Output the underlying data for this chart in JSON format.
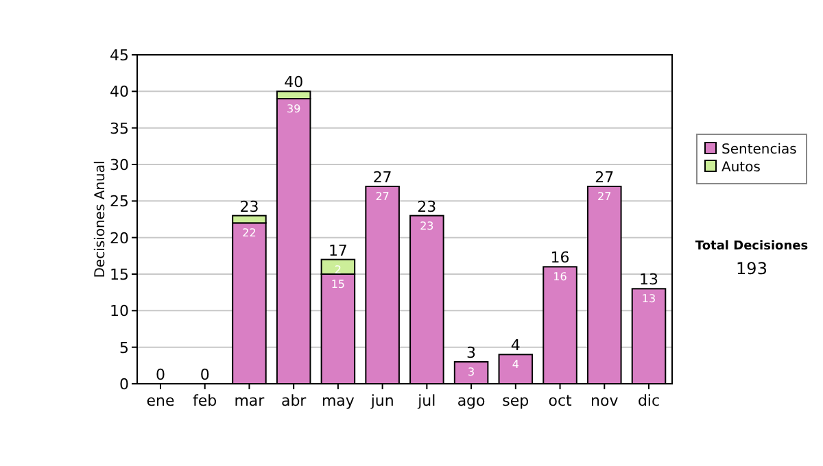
{
  "chart_data": {
    "type": "bar",
    "stacked": true,
    "ylabel": "Decisiones Anual",
    "categories": [
      "ene",
      "feb",
      "mar",
      "abr",
      "may",
      "jun",
      "jul",
      "ago",
      "sep",
      "oct",
      "nov",
      "dic"
    ],
    "series": [
      {
        "name": "Sentencias",
        "color": "#d97fc4",
        "values": [
          0,
          0,
          22,
          39,
          15,
          27,
          23,
          3,
          4,
          16,
          27,
          13
        ],
        "value_labels": [
          null,
          null,
          "22",
          "39",
          "15",
          "27",
          "23",
          "3",
          "4",
          "16",
          "27",
          "13"
        ]
      },
      {
        "name": "Autos",
        "color": "#ccee99",
        "values": [
          0,
          0,
          1,
          1,
          2,
          0,
          0,
          0,
          0,
          0,
          0,
          0
        ],
        "value_labels": [
          null,
          null,
          null,
          null,
          "2",
          null,
          null,
          null,
          null,
          null,
          null,
          null
        ]
      }
    ],
    "totals": [
      "0",
      "0",
      "23",
      "40",
      "17",
      "27",
      "23",
      "3",
      "4",
      "16",
      "27",
      "13"
    ],
    "ylim": [
      0,
      45
    ],
    "yticks": [
      0,
      5,
      10,
      15,
      20,
      25,
      30,
      35,
      40,
      45
    ],
    "grid": "y",
    "legend": "right",
    "annotations": [
      "Total Decisiones",
      "193"
    ]
  }
}
